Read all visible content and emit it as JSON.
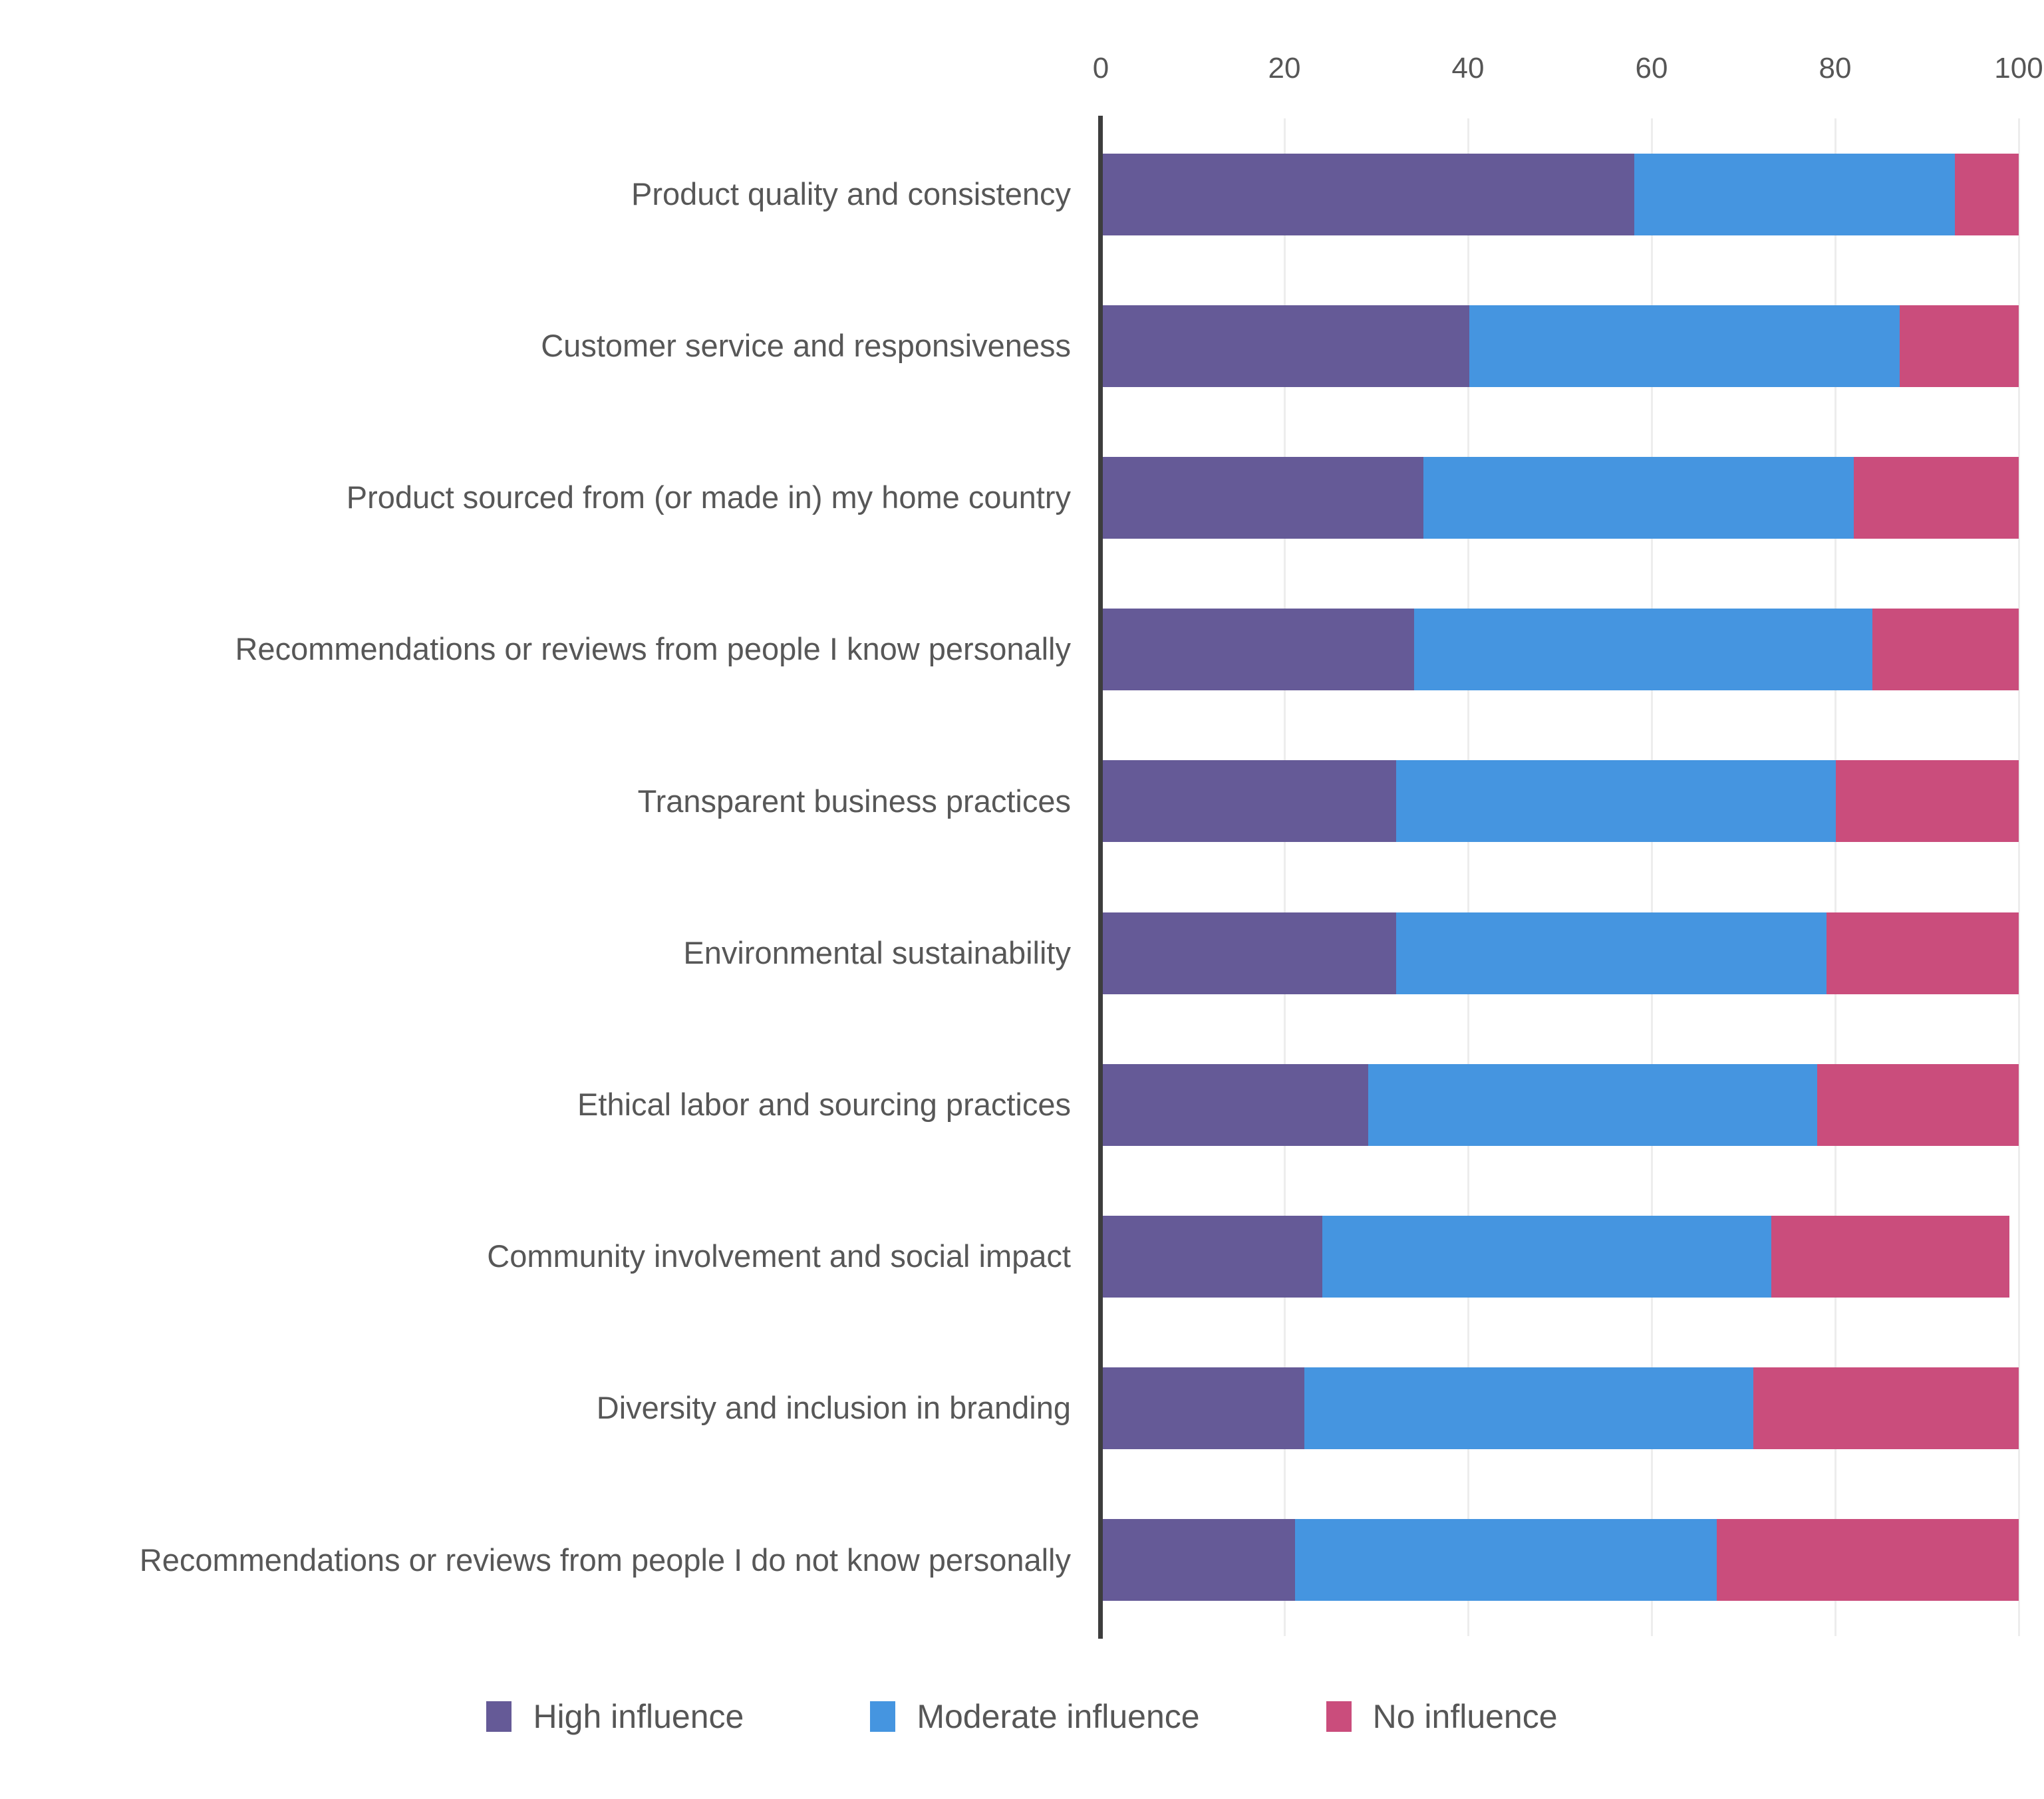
{
  "chart_data": {
    "type": "bar",
    "orientation": "horizontal",
    "stacked": true,
    "title": "",
    "xlabel": "",
    "ylabel": "",
    "xlim": [
      0,
      100
    ],
    "x_ticks": [
      0,
      20,
      40,
      60,
      80,
      100
    ],
    "grid": true,
    "legend_position": "bottom",
    "categories": [
      "Product quality and consistency",
      "Customer service and responsiveness",
      "Product sourced from (or made in) my home country",
      "Recommendations or reviews from people I know personally",
      "Transparent business practices",
      "Environmental sustainability",
      "Ethical labor and sourcing practices",
      "Community involvement and social impact",
      "Diversity and inclusion in branding",
      "Recommendations or reviews from people I do not know personally"
    ],
    "series": [
      {
        "name": "High influence",
        "color": "#655a97",
        "values": [
          58,
          40,
          35,
          34,
          32,
          32,
          29,
          24,
          22,
          21
        ]
      },
      {
        "name": "Moderate influence",
        "color": "#4595e0",
        "values": [
          35,
          47,
          47,
          50,
          48,
          47,
          49,
          49,
          49,
          46
        ]
      },
      {
        "name": "No influence",
        "color": "#ca4d7c",
        "values": [
          7,
          13,
          18,
          16,
          20,
          21,
          22,
          26,
          29,
          33
        ]
      }
    ]
  },
  "theme": {
    "background_color": "#ffffff",
    "axis_line_color": "#3d3d3d",
    "gridline_color": "#ededed",
    "label_color": "#575757",
    "tick_color": "#565656"
  }
}
